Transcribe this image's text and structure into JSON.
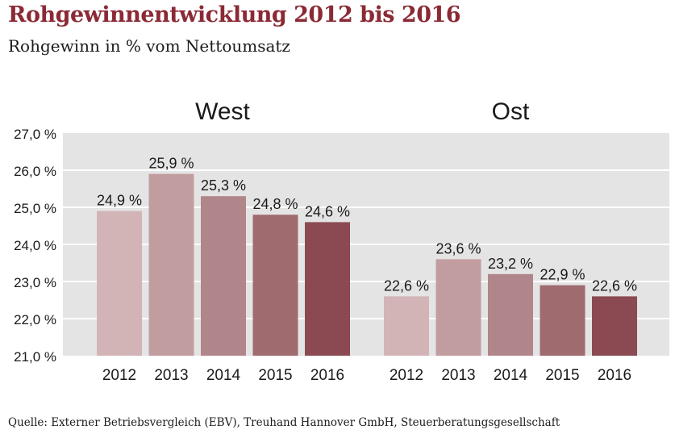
{
  "title": "Rohgewinnentwicklung 2012 bis 2016",
  "subtitle": "Rohgewinn in % vom Nettoumsatz",
  "source": "Quelle: Externer Betriebsvergleich (EBV), Treuhand Hannover GmbH, Steuerberatungsgesellschaft",
  "chart_data": {
    "type": "bar",
    "title": "Rohgewinnentwicklung 2012 bis 2016",
    "subtitle": "Rohgewinn in % vom Nettoumsatz",
    "ylim": [
      21.0,
      27.0
    ],
    "yticks": [
      "21,0 %",
      "22,0 %",
      "23,0 %",
      "24,0 %",
      "25,0 %",
      "26,0 %",
      "27,0 %"
    ],
    "grid": true,
    "categories": [
      "2012",
      "2013",
      "2014",
      "2015",
      "2016"
    ],
    "bar_colors": [
      "#d2b4b6",
      "#c29d9f",
      "#b1868a",
      "#9f6b6f",
      "#8b4a52"
    ],
    "background_color": "#e4e4e4",
    "panels": [
      {
        "name": "West",
        "values": [
          24.9,
          25.9,
          25.3,
          24.8,
          24.6
        ],
        "labels": [
          "24,9 %",
          "25,9 %",
          "25,3 %",
          "24,8 %",
          "24,6 %"
        ]
      },
      {
        "name": "Ost",
        "values": [
          22.6,
          23.6,
          23.2,
          22.9,
          22.6
        ],
        "labels": [
          "22,6 %",
          "23,6 %",
          "23,2 %",
          "22,9 %",
          "22,6 %"
        ]
      }
    ]
  }
}
